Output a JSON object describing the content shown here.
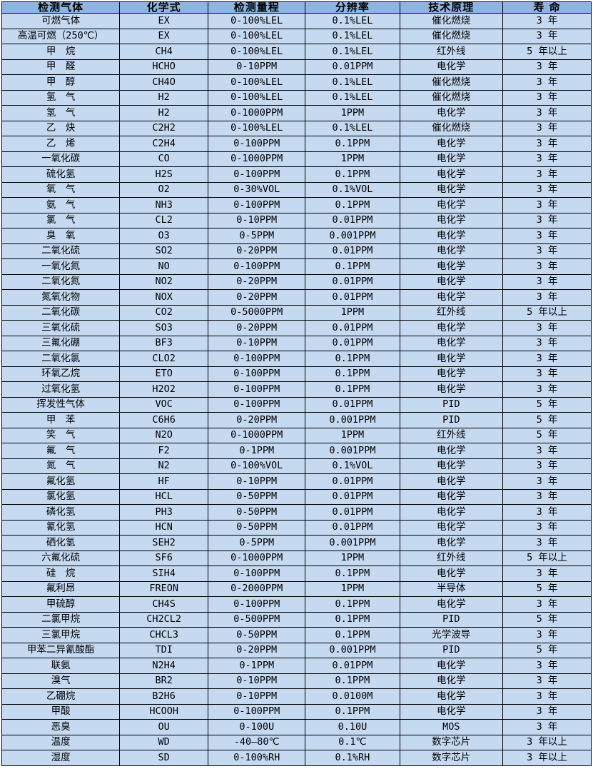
{
  "colors": {
    "header_bg": "#8db4e2",
    "row_bg": "#c5d9f1",
    "border": "#000000",
    "text": "#000000",
    "page_bg": "#ffffff"
  },
  "table": {
    "columns": [
      "检测气体",
      "化学式",
      "检测量程",
      "分辨率",
      "技术原理",
      "寿 命"
    ],
    "rows": [
      [
        "可燃气体",
        "EX",
        "0-100%LEL",
        "0.1%LEL",
        "催化燃烧",
        "3 年"
      ],
      [
        "高温可燃（250℃）",
        "EX",
        "0-100%LEL",
        "0.1%LEL",
        "催化燃烧",
        "3 年"
      ],
      [
        "甲　烷",
        "CH4",
        "0-100%LEL",
        "0.1%LEL",
        "红外线",
        "5 年以上"
      ],
      [
        "甲　醛",
        "HCHO",
        "0-10PPM",
        "0.01PPM",
        "电化学",
        "3 年"
      ],
      [
        "甲　醇",
        "CH4O",
        "0-100%LEL",
        "0.1%LEL",
        "催化燃烧",
        "3 年"
      ],
      [
        "氢　气",
        "H2",
        "0-100%LEL",
        "0.1%LEL",
        "催化燃烧",
        "3 年"
      ],
      [
        "氢　气",
        "H2",
        "0-1000PPM",
        "1PPM",
        "电化学",
        "3 年"
      ],
      [
        "乙　炔",
        "C2H2",
        "0-100%LEL",
        "0.1%LEL",
        "催化燃烧",
        "3 年"
      ],
      [
        "乙　烯",
        "C2H4",
        "0-100PPM",
        "0.1PPM",
        "电化学",
        "3 年"
      ],
      [
        "一氧化碳",
        "CO",
        "0-1000PPM",
        "1PPM",
        "电化学",
        "3 年"
      ],
      [
        "硫化氢",
        "H2S",
        "0-100PPM",
        "0.1PPM",
        "电化学",
        "3 年"
      ],
      [
        "氧　气",
        "O2",
        "0-30%VOL",
        "0.1%VOL",
        "电化学",
        "3 年"
      ],
      [
        "氨　气",
        "NH3",
        "0-100PPM",
        "0.1PPM",
        "电化学",
        "3 年"
      ],
      [
        "氯　气",
        "CL2",
        "0-10PPM",
        "0.01PPM",
        "电化学",
        "3 年"
      ],
      [
        "臭　氧",
        "O3",
        "0-5PPM",
        "0.001PPM",
        "电化学",
        "3 年"
      ],
      [
        "二氧化硫",
        "SO2",
        "0-20PPM",
        "0.01PPM",
        "电化学",
        "3 年"
      ],
      [
        "一氧化氮",
        "NO",
        "0-100PPM",
        "0.1PPM",
        "电化学",
        "3 年"
      ],
      [
        "二氧化氮",
        "NO2",
        "0-20PPM",
        "0.01PPM",
        "电化学",
        "3 年"
      ],
      [
        "氮氧化物",
        "NOX",
        "0-20PPM",
        "0.01PPM",
        "电化学",
        "3 年"
      ],
      [
        "二氧化碳",
        "CO2",
        "0-5000PPM",
        "1PPM",
        "红外线",
        "5 年以上"
      ],
      [
        "三氧化硫",
        "SO3",
        "0-20PPM",
        "0.01PPM",
        "电化学",
        "3 年"
      ],
      [
        "三氟化硼",
        "BF3",
        "0-10PPM",
        "0.01PPM",
        "电化学",
        "3 年"
      ],
      [
        "二氧化氯",
        "CLO2",
        "0-100PPM",
        "0.1PPM",
        "电化学",
        "3 年"
      ],
      [
        "环氧乙烷",
        "ETO",
        "0-100PPM",
        "0.1PPM",
        "电化学",
        "3 年"
      ],
      [
        "过氧化氢",
        "H2O2",
        "0-100PPM",
        "0.1PPM",
        "电化学",
        "3 年"
      ],
      [
        "挥发性气体",
        "VOC",
        "0-100PPM",
        "0.01PPM",
        "PID",
        "5 年"
      ],
      [
        "甲　苯",
        "C6H6",
        "0-20PPM",
        "0.001PPM",
        "PID",
        "5 年"
      ],
      [
        "笑　气",
        "N2O",
        "0-1000PPM",
        "1PPM",
        "红外线",
        "5 年"
      ],
      [
        "氟　气",
        "F2",
        "0-1PPM",
        "0.001PPM",
        "电化学",
        "3 年"
      ],
      [
        "氮　气",
        "N2",
        "0-100%VOL",
        "0.1%VOL",
        "电化学",
        "3 年"
      ],
      [
        "氟化氢",
        "HF",
        "0-10PPM",
        "0.01PPM",
        "电化学",
        "3 年"
      ],
      [
        "氯化氢",
        "HCL",
        "0-50PPM",
        "0.01PPM",
        "电化学",
        "3 年"
      ],
      [
        "磷化氢",
        "PH3",
        "0-50PPM",
        "0.01PPM",
        "电化学",
        "3 年"
      ],
      [
        "氰化氢",
        "HCN",
        "0-50PPM",
        "0.01PPM",
        "电化学",
        "3 年"
      ],
      [
        "硒化氢",
        "SEH2",
        "0-5PPM",
        "0.001PPM",
        "电化学",
        "3 年"
      ],
      [
        "六氟化硫",
        "SF6",
        "0-1000PPM",
        "1PPM",
        "红外线",
        "5 年以上"
      ],
      [
        "硅　烷",
        "SIH4",
        "0-100PPM",
        "0.1PPM",
        "电化学",
        "3 年"
      ],
      [
        "氟利昂",
        "FREON",
        "0-2000PPM",
        "1PPM",
        "半导体",
        "5 年"
      ],
      [
        "甲硫醇",
        "CH4S",
        "0-100PPM",
        "0.1PPM",
        "电化学",
        "3 年"
      ],
      [
        "二氯甲烷",
        "CH2CL2",
        "0-500PPM",
        "0.1PPM",
        "PID",
        "5 年"
      ],
      [
        "三氯甲烷",
        "CHCL3",
        "0-50PPM",
        "0.1PPM",
        "光学波导",
        "3 年"
      ],
      [
        "甲苯二异氰酸酯",
        "TDI",
        "0-20PPM",
        "0.001PPM",
        "PID",
        "5 年"
      ],
      [
        "联氨",
        "N2H4",
        "0-1PPM",
        "0.01PPM",
        "电化学",
        "3 年"
      ],
      [
        "溴气",
        "BR2",
        "0-10PPM",
        "0.1PPM",
        "电化学",
        "3 年"
      ],
      [
        "乙硼烷",
        "B2H6",
        "0-10PPM",
        "0.0100M",
        "电化学",
        "3 年"
      ],
      [
        "甲酸",
        "HCOOH",
        "0-100PPM",
        "0.1PPM",
        "电化学",
        "3 年"
      ],
      [
        "恶臭",
        "OU",
        "0-100U",
        "0.10U",
        "MOS",
        "3 年"
      ],
      [
        "温度",
        "WD",
        "-40—80℃",
        "0.1℃",
        "数字芯片",
        "3 年以上"
      ],
      [
        "湿度",
        "SD",
        "0-100%RH",
        "0.1%RH",
        "数字芯片",
        "3 年以上"
      ]
    ]
  }
}
